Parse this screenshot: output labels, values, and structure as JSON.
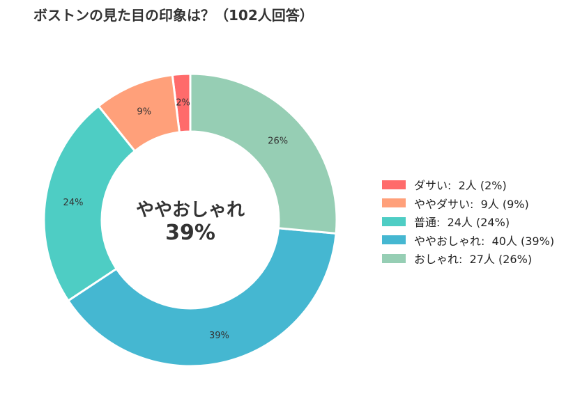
{
  "chart_data": {
    "type": "pie",
    "variant": "donut",
    "title": "ボストンの見た目の印象は？（102人回答）",
    "categories": [
      "ダサい",
      "ややダサい",
      "普通",
      "ややおしゃれ",
      "おしゃれ"
    ],
    "values": [
      2,
      9,
      24,
      40,
      27
    ],
    "percent_labels": [
      "2%",
      "9%",
      "24%",
      "39%",
      "26%"
    ],
    "colors": [
      "#ff6b6b",
      "#ffa07a",
      "#4ecdc4",
      "#45b7d1",
      "#96ceb4"
    ],
    "legend": {
      "placement": "right",
      "entries": [
        "ダサい:  2人 (2%)",
        "ややダサい:  9人 (9%)",
        "普通:  24人 (24%)",
        "ややおしゃれ:  40人 (39%)",
        "おしゃれ:  27人 (26%)"
      ]
    },
    "center_label": {
      "line1": "ややおしゃれ",
      "line2": "39%"
    },
    "start_angle": "top",
    "direction": "counterclockwise"
  }
}
